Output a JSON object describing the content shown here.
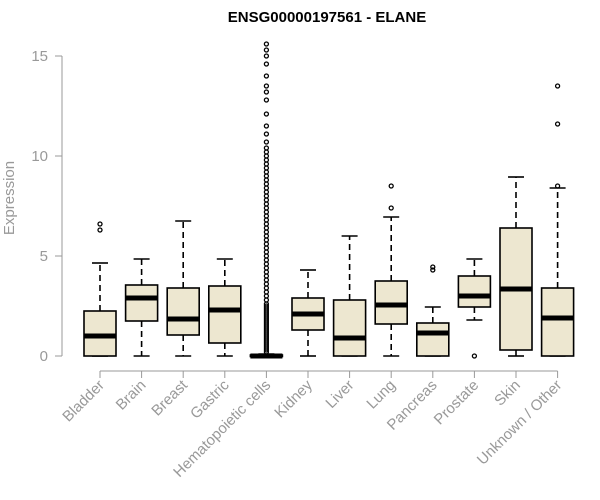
{
  "chart_data": {
    "type": "boxplot",
    "title": "ENSG00000197561 - ELANE",
    "xlabel": "",
    "ylabel": "Expression",
    "ylim": [
      0,
      15.5
    ],
    "yticks": [
      0,
      5,
      10,
      15
    ],
    "grid": false,
    "box_color": "#ede7d0",
    "categories": [
      "Bladder",
      "Brain",
      "Breast",
      "Gastric",
      "Hematopoietic cells",
      "Kidney",
      "Liver",
      "Lung",
      "Pancreas",
      "Prostate",
      "Skin",
      "Unknown / Other"
    ],
    "boxes": [
      {
        "category": "Bladder",
        "lower_whisker": 0,
        "q1": 0,
        "median": 1.0,
        "q3": 2.25,
        "upper_whisker": 4.65,
        "outliers": [
          6.3,
          6.6
        ]
      },
      {
        "category": "Brain",
        "lower_whisker": 0,
        "q1": 1.75,
        "median": 2.9,
        "q3": 3.55,
        "upper_whisker": 4.85,
        "outliers": []
      },
      {
        "category": "Breast",
        "lower_whisker": 0,
        "q1": 1.05,
        "median": 1.85,
        "q3": 3.4,
        "upper_whisker": 6.75,
        "outliers": []
      },
      {
        "category": "Gastric",
        "lower_whisker": 0,
        "q1": 0.65,
        "median": 2.3,
        "q3": 3.5,
        "upper_whisker": 4.85,
        "outliers": []
      },
      {
        "category": "Hematopoietic cells",
        "lower_whisker": 0,
        "q1": 0,
        "median": 0,
        "q3": 0.05,
        "upper_whisker": 0.1,
        "outliers": [
          0.2,
          0.3,
          0.4,
          0.5,
          0.6,
          0.7,
          0.8,
          0.9,
          1.0,
          1.1,
          1.2,
          1.3,
          1.4,
          1.5,
          1.6,
          1.7,
          1.8,
          1.9,
          2.0,
          2.1,
          2.2,
          2.3,
          2.4,
          2.5,
          2.6,
          2.8,
          3.0,
          3.2,
          3.4,
          3.6,
          3.8,
          4.0,
          4.2,
          4.4,
          4.6,
          4.8,
          5.0,
          5.2,
          5.4,
          5.6,
          5.8,
          6.0,
          6.2,
          6.4,
          6.6,
          6.8,
          7.0,
          7.2,
          7.4,
          7.6,
          7.8,
          8.0,
          8.2,
          8.4,
          8.6,
          8.8,
          9.0,
          9.2,
          9.4,
          9.6,
          9.8,
          10.0,
          10.2,
          10.4,
          10.7,
          11.1,
          11.5,
          12.1,
          12.8,
          13.2,
          13.5,
          14.0,
          14.6,
          15.0,
          15.3,
          15.6
        ]
      },
      {
        "category": "Kidney",
        "lower_whisker": 0,
        "q1": 1.3,
        "median": 2.1,
        "q3": 2.9,
        "upper_whisker": 4.3,
        "outliers": []
      },
      {
        "category": "Liver",
        "lower_whisker": 0,
        "q1": 0,
        "median": 0.9,
        "q3": 2.8,
        "upper_whisker": 6.0,
        "outliers": []
      },
      {
        "category": "Lung",
        "lower_whisker": 0,
        "q1": 1.6,
        "median": 2.55,
        "q3": 3.75,
        "upper_whisker": 6.95,
        "outliers": [
          7.4,
          8.5
        ]
      },
      {
        "category": "Pancreas",
        "lower_whisker": 0,
        "q1": 0,
        "median": 1.15,
        "q3": 1.65,
        "upper_whisker": 2.45,
        "outliers": [
          4.3,
          4.45
        ]
      },
      {
        "category": "Prostate",
        "lower_whisker": 1.8,
        "q1": 2.45,
        "median": 3.0,
        "q3": 4.0,
        "upper_whisker": 4.85,
        "outliers": [
          0
        ]
      },
      {
        "category": "Skin",
        "lower_whisker": 0,
        "q1": 0.3,
        "median": 3.35,
        "q3": 6.4,
        "upper_whisker": 8.95,
        "outliers": []
      },
      {
        "category": "Unknown / Other",
        "lower_whisker": 0,
        "q1": 0,
        "median": 1.9,
        "q3": 3.4,
        "upper_whisker": 8.4,
        "outliers": [
          8.5,
          11.6,
          13.5
        ]
      }
    ]
  }
}
